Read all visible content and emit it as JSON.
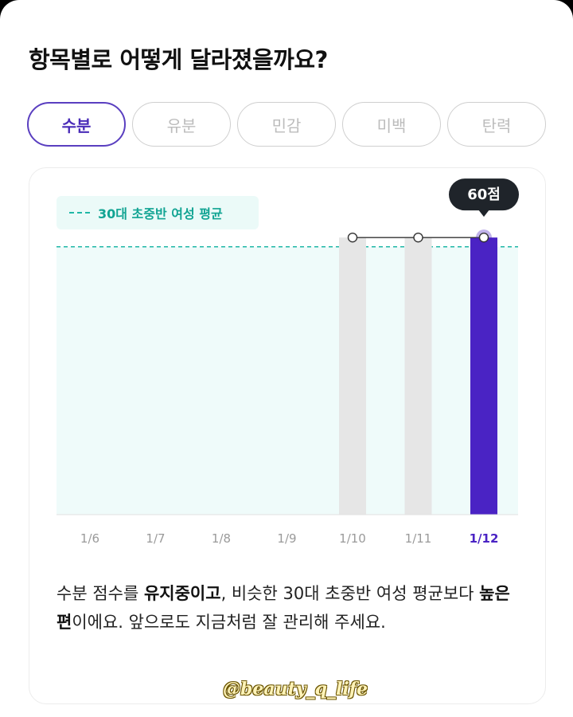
{
  "heading": "항목별로 어떻게 달라졌을까요?",
  "tabs": [
    {
      "label": "수분",
      "active": true
    },
    {
      "label": "유분",
      "active": false
    },
    {
      "label": "민감",
      "active": false
    },
    {
      "label": "미백",
      "active": false
    },
    {
      "label": "탄력",
      "active": false
    }
  ],
  "legend": {
    "label": "30대 초중반 여성 평균"
  },
  "tooltip": {
    "label": "60점"
  },
  "colors": {
    "accent": "#4a23c4",
    "average": "#1fb7a6",
    "average_fill": "#effbfa",
    "inactive_bar": "#e6e6e6"
  },
  "chart_data": {
    "type": "bar",
    "categories": [
      "1/6",
      "1/7",
      "1/8",
      "1/9",
      "1/10",
      "1/11",
      "1/12"
    ],
    "values": [
      null,
      null,
      null,
      null,
      60,
      60,
      60
    ],
    "average": 58,
    "selected": "1/12",
    "ylim": [
      0,
      69
    ]
  },
  "description": {
    "p1": "수분 점수를 ",
    "b1": "유지중이고",
    "p2": ", 비슷한 30대 초중반 여성 평균보다 ",
    "b2": "높은 편",
    "p3": "이에요. 앞으로도 지금처럼 잘 관리해 주세요."
  },
  "watermark": "@beauty_q_life"
}
